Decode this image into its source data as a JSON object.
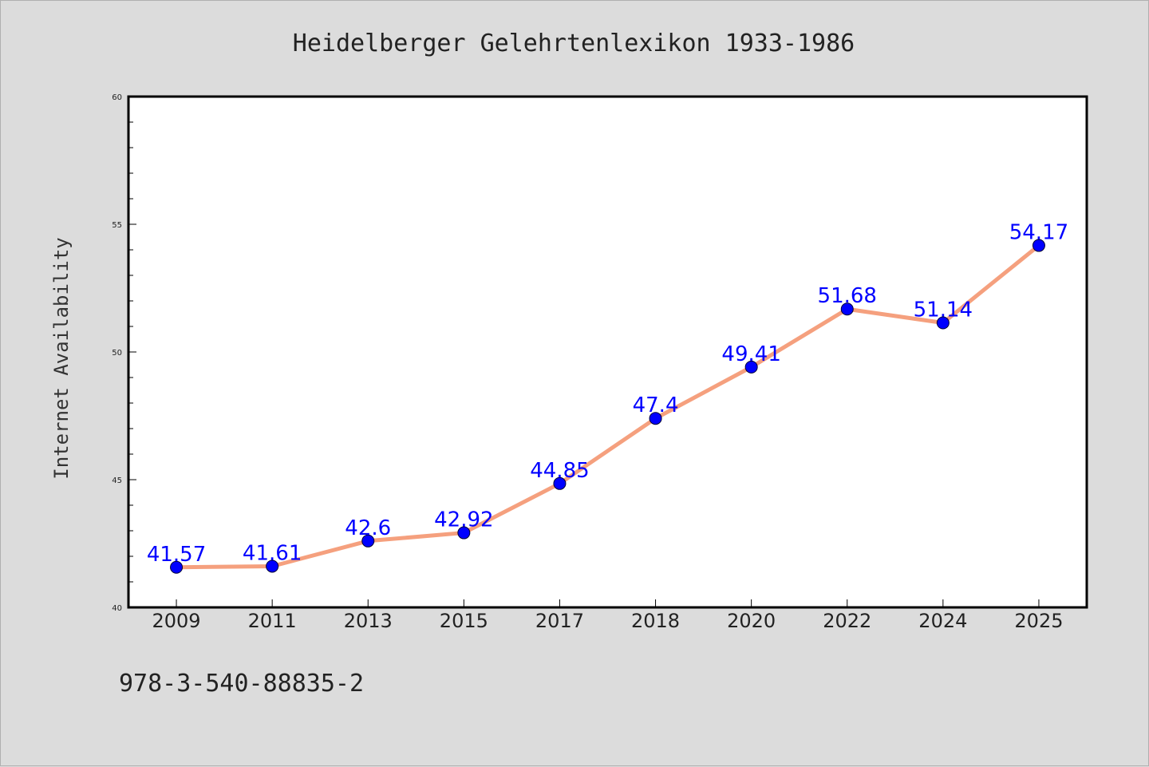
{
  "chart_data": {
    "type": "line",
    "title": "Heidelberger Gelehrtenlexikon 1933-1986",
    "xlabel": "",
    "ylabel": "Internet Availability",
    "categories": [
      "2009",
      "2011",
      "2013",
      "2015",
      "2017",
      "2018",
      "2020",
      "2022",
      "2024",
      "2025"
    ],
    "series": [
      {
        "values": [
          41.57,
          41.61,
          42.6,
          42.92,
          44.85,
          47.4,
          49.41,
          51.68,
          51.14,
          54.17
        ],
        "data_labels": [
          "41.57",
          "41.61",
          "42.6",
          "42.92",
          "44.85",
          "47.4",
          "49.41",
          "51.68",
          "51.14",
          "54.17"
        ],
        "line_color": "#f5a07e",
        "marker_color": "#0000ff"
      }
    ],
    "ylim": [
      40,
      60
    ],
    "yticks": [
      "40",
      "45",
      "50",
      "55",
      "60"
    ],
    "grid": false,
    "legend": "none"
  },
  "footnote": "978-3-540-88835-2",
  "colors": {
    "background": "#dcdcdc",
    "plot_background": "#ffffff"
  }
}
